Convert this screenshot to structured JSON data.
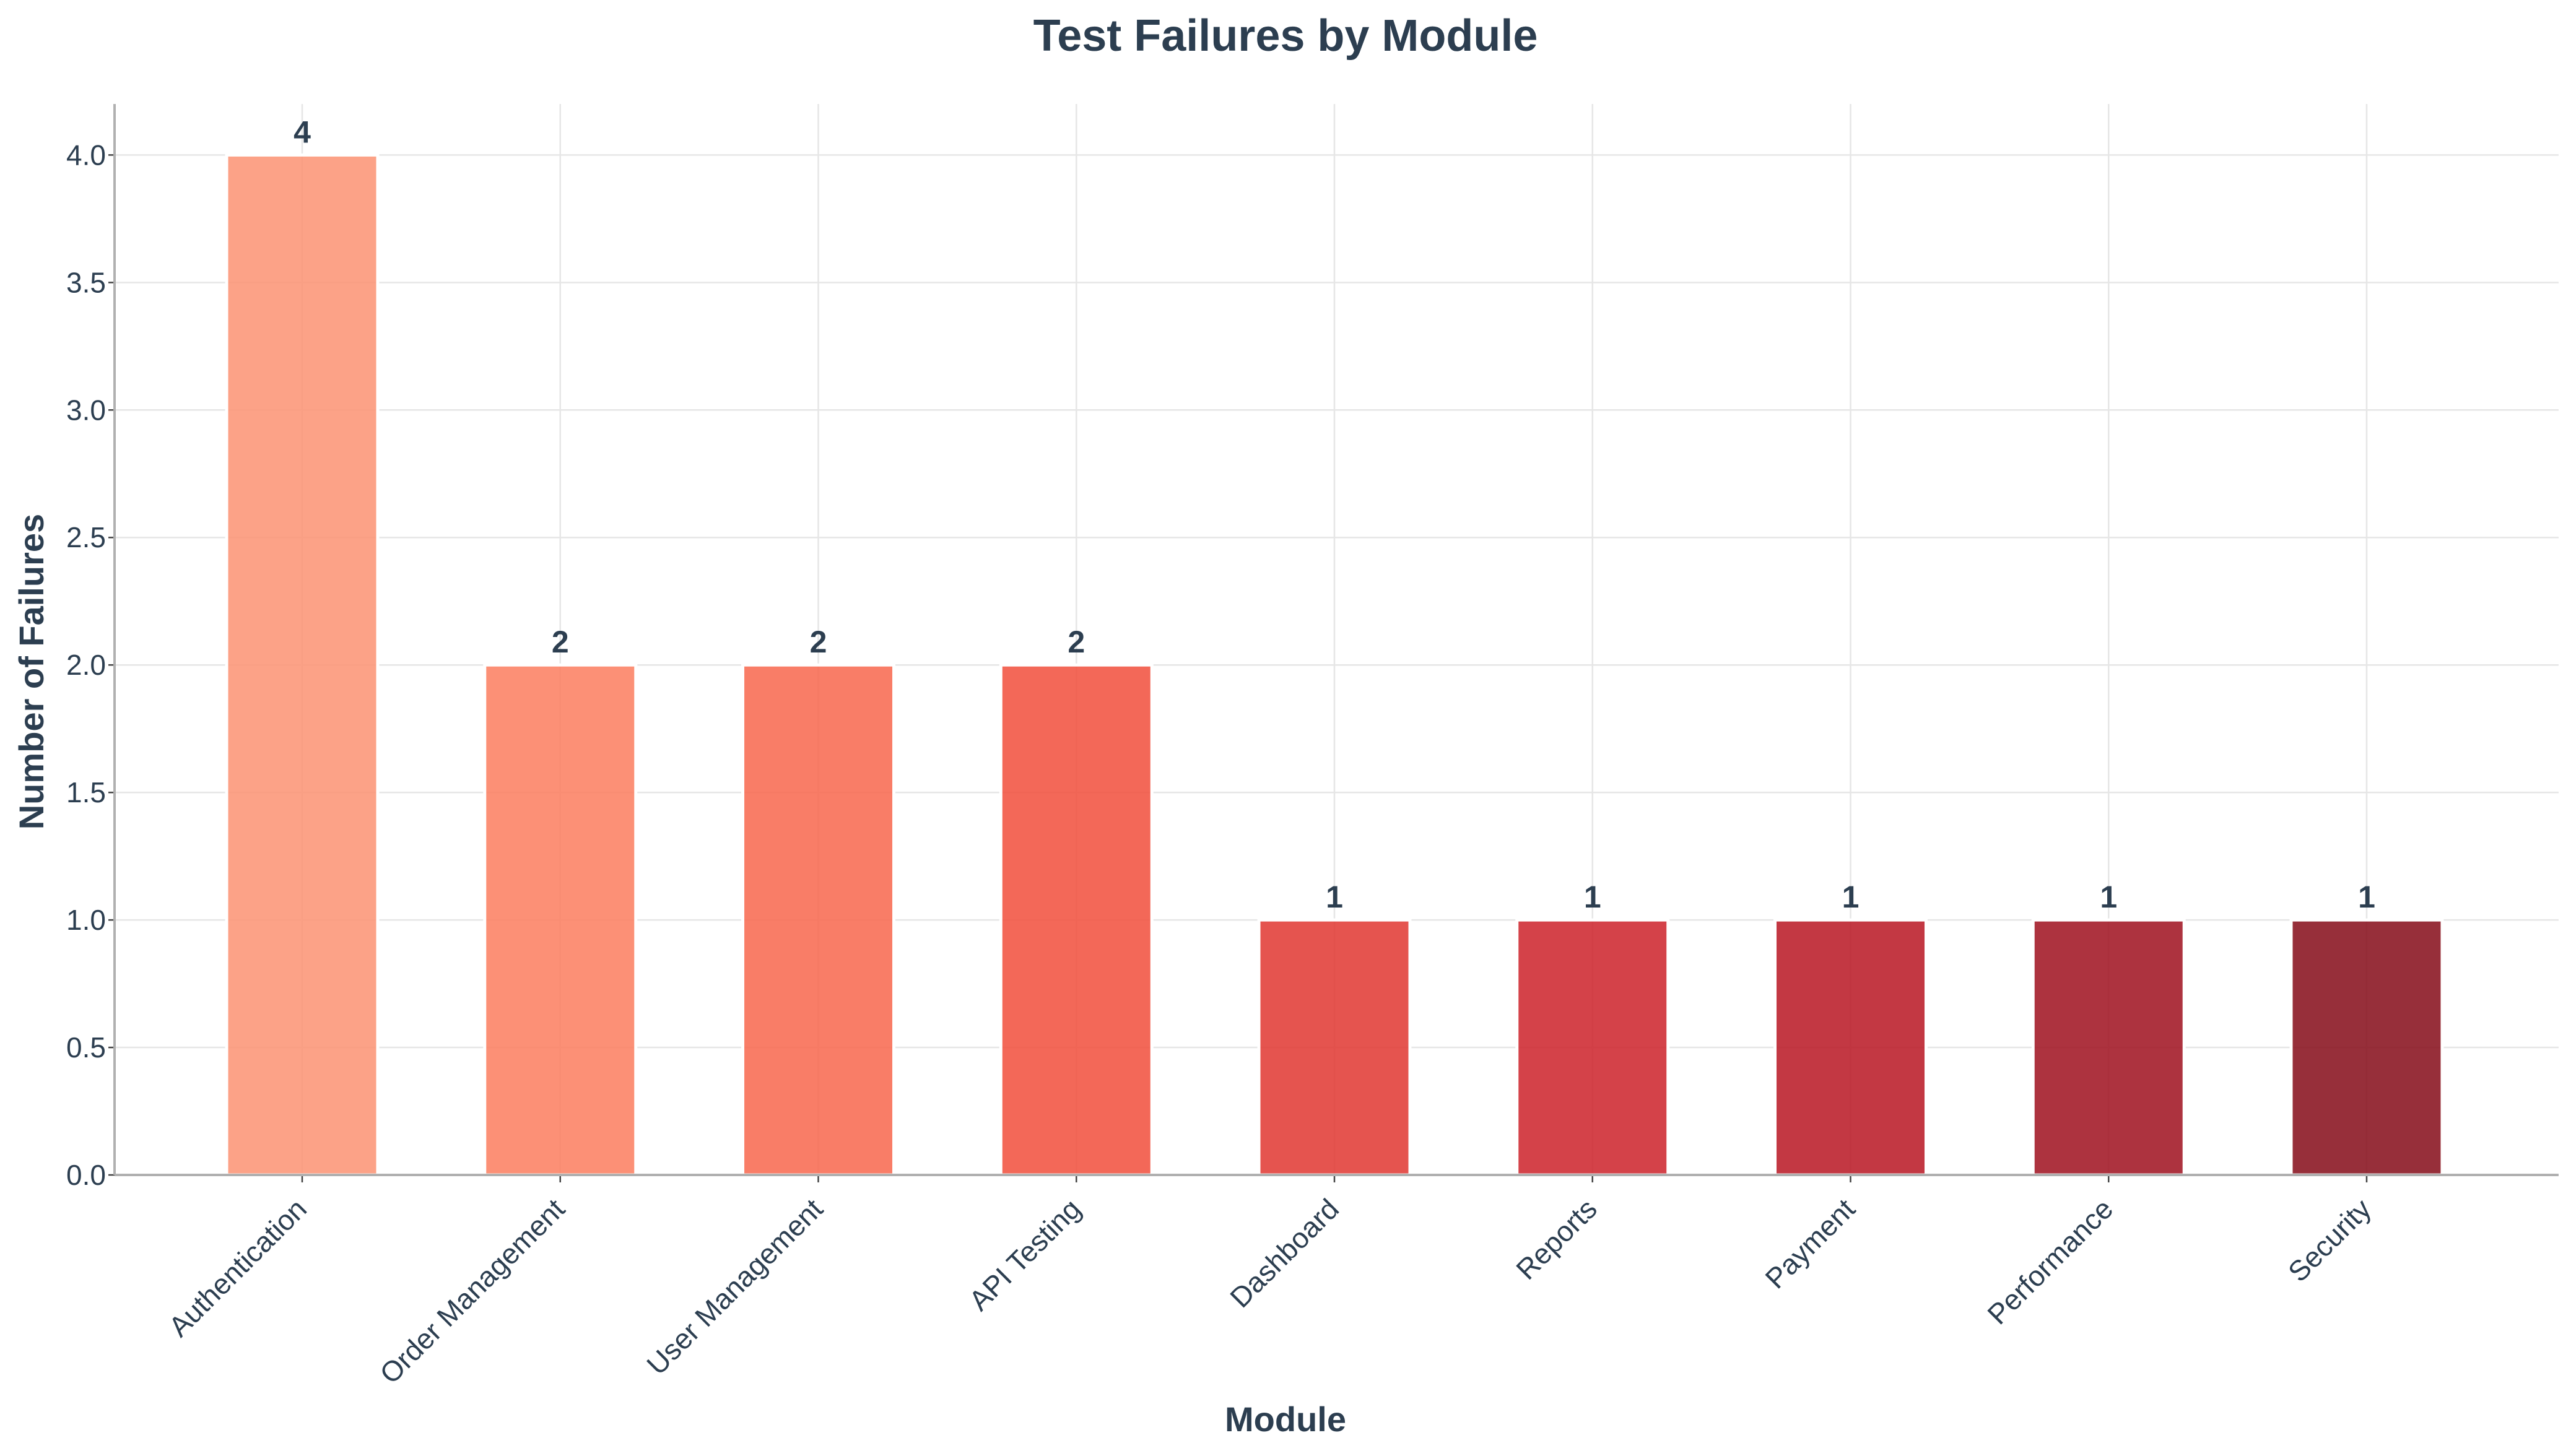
{
  "chart_data": {
    "type": "bar",
    "title": "Test Failures by Module",
    "xlabel": "Module",
    "ylabel": "Number of Failures",
    "categories": [
      "Authentication",
      "Order Management",
      "User Management",
      "API Testing",
      "Dashboard",
      "Reports",
      "Payment",
      "Performance",
      "Security"
    ],
    "values": [
      4,
      2,
      2,
      2,
      1,
      1,
      1,
      1,
      1
    ],
    "ylim": [
      0,
      4.2
    ],
    "yticks": [
      "0.0",
      "0.5",
      "1.0",
      "1.5",
      "2.0",
      "2.5",
      "3.0",
      "3.5",
      "4.0"
    ],
    "data_labels": [
      "4",
      "2",
      "2",
      "2",
      "1",
      "1",
      "1",
      "1",
      "1"
    ],
    "colors": [
      "#fc9272",
      "#fb7d5e",
      "#f8664c",
      "#f14d3b",
      "#e03630",
      "#cd2129",
      "#b91522",
      "#9f0f1d",
      "#850b17"
    ],
    "grid": true,
    "legend": "none"
  }
}
